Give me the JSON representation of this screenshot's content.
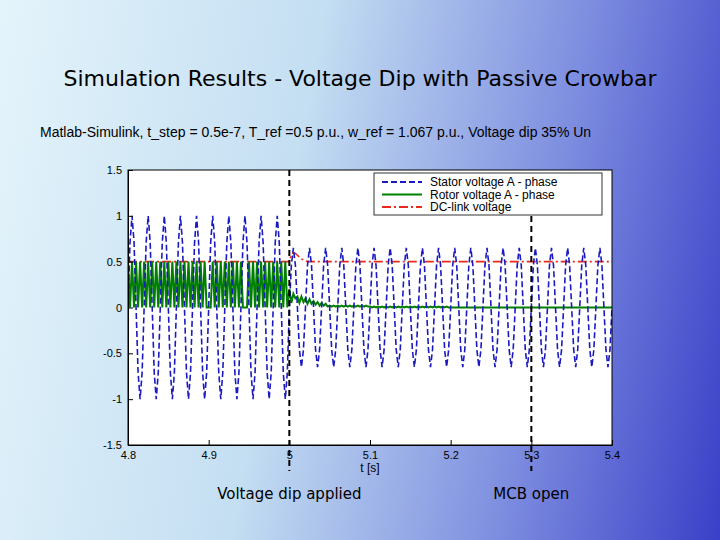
{
  "chart_data": {
    "type": "line",
    "title": "Simulation Results - Voltage Dip with Passive Crowbar",
    "subtitle": "Matlab-Simulink, t_step = 0.5e-7, T_ref =0.5 p.u., w_ref = 1.067 p.u., Voltage dip 35% Un",
    "x_label": "t [s]",
    "xlim": [
      4.8,
      5.4
    ],
    "xticks": [
      4.8,
      4.9,
      5,
      5.1,
      5.2,
      5.3,
      5.4
    ],
    "ylim": [
      -1.5,
      1.5
    ],
    "yticks": [
      -1.5,
      -1,
      -0.5,
      0,
      0.5,
      1,
      1.5
    ],
    "grid": false,
    "legend": "upper right",
    "annotations": [
      {
        "text": "Voltage dip applied",
        "x": 5
      },
      {
        "text": "MCB open",
        "x": 5.3
      }
    ],
    "x": [
      4.8,
      4.8025,
      4.805,
      4.8075,
      4.81,
      4.8125,
      4.815,
      4.8175,
      4.82,
      4.8225,
      4.825,
      4.8275,
      4.83,
      4.8325,
      4.835,
      4.8375,
      4.84,
      4.8425,
      4.845,
      4.8475,
      4.85,
      4.8525,
      4.855,
      4.8575,
      4.86,
      4.8625,
      4.865,
      4.8675,
      4.87,
      4.8725,
      4.875,
      4.8775,
      4.88,
      4.8825,
      4.885,
      4.8875,
      4.89,
      4.8925,
      4.895,
      4.8975,
      4.9,
      4.9025,
      4.905,
      4.9075,
      4.91,
      4.9125,
      4.915,
      4.9175,
      4.92,
      4.9225,
      4.925,
      4.9275,
      4.93,
      4.9325,
      4.935,
      4.9375,
      4.94,
      4.9425,
      4.945,
      4.9475,
      4.95,
      4.9525,
      4.955,
      4.9575,
      4.96,
      4.9625,
      4.965,
      4.9675,
      4.97,
      4.9725,
      4.975,
      4.9775,
      4.98,
      4.9825,
      4.985,
      4.9875,
      4.99,
      4.9925,
      4.995,
      4.9975,
      5,
      5.0025,
      5.005,
      5.0075,
      5.01,
      5.0125,
      5.015,
      5.0175,
      5.02,
      5.0225,
      5.025,
      5.0275,
      5.03,
      5.0325,
      5.035,
      5.0375,
      5.04,
      5.0425,
      5.045,
      5.0475,
      5.05,
      5.0525,
      5.055,
      5.0575,
      5.06,
      5.0625,
      5.065,
      5.0675,
      5.07,
      5.0725,
      5.075,
      5.0775,
      5.08,
      5.0825,
      5.085,
      5.0875,
      5.09,
      5.0925,
      5.095,
      5.0975,
      5.1,
      5.1025,
      5.105,
      5.1075,
      5.11,
      5.1125,
      5.115,
      5.1175,
      5.12,
      5.1225,
      5.125,
      5.1275,
      5.13,
      5.1325,
      5.135,
      5.1375,
      5.14,
      5.1425,
      5.145,
      5.1475,
      5.15,
      5.1525,
      5.155,
      5.1575,
      5.16,
      5.1625,
      5.165,
      5.1675,
      5.17,
      5.1725,
      5.175,
      5.1775,
      5.18,
      5.1825,
      5.185,
      5.1875,
      5.19,
      5.1925,
      5.195,
      5.1975,
      5.2,
      5.2025,
      5.205,
      5.2075,
      5.21,
      5.2125,
      5.215,
      5.2175,
      5.22,
      5.2225,
      5.225,
      5.2275,
      5.23,
      5.2325,
      5.235,
      5.2375,
      5.24,
      5.2425,
      5.245,
      5.2475,
      5.25,
      5.2525,
      5.255,
      5.2575,
      5.26,
      5.2625,
      5.265,
      5.2675,
      5.27,
      5.2725,
      5.275,
      5.2775,
      5.28,
      5.2825,
      5.285,
      5.2875,
      5.29,
      5.2925,
      5.295,
      5.2975,
      5.3,
      5.3025,
      5.305,
      5.3075,
      5.31,
      5.3125,
      5.315,
      5.3175,
      5.32,
      5.3225,
      5.325,
      5.3275,
      5.33,
      5.3325,
      5.335,
      5.3375,
      5.34,
      5.3425,
      5.345,
      5.3475,
      5.35,
      5.3525,
      5.355,
      5.3575,
      5.36,
      5.3625,
      5.365,
      5.3675,
      5.37,
      5.3725,
      5.375,
      5.3775,
      5.38,
      5.3825,
      5.385,
      5.3875,
      5.39,
      5.3925,
      5.395,
      5.3975,
      5.4
    ],
    "series": [
      {
        "name": "DC-link voltage",
        "color": "#e8291c",
        "line_style": "dashdot",
        "values": [
          0.5,
          0.5,
          0.5,
          0.5,
          0.5,
          0.5,
          0.5,
          0.5,
          0.5,
          0.5,
          0.5,
          0.5,
          0.5,
          0.5,
          0.5,
          0.5,
          0.5,
          0.5,
          0.5,
          0.5,
          0.5,
          0.5,
          0.5,
          0.5,
          0.5,
          0.5,
          0.5,
          0.5,
          0.5,
          0.5,
          0.5,
          0.5,
          0.5,
          0.5,
          0.5,
          0.5,
          0.5,
          0.5,
          0.5,
          0.5,
          0.5,
          0.5,
          0.5,
          0.5,
          0.5,
          0.5,
          0.5,
          0.5,
          0.5,
          0.5,
          0.5,
          0.5,
          0.5,
          0.5,
          0.5,
          0.5,
          0.5,
          0.5,
          0.5,
          0.5,
          0.5,
          0.5,
          0.5,
          0.5,
          0.5,
          0.5,
          0.5,
          0.5,
          0.5,
          0.5,
          0.5,
          0.5,
          0.5,
          0.5,
          0.5,
          0.5,
          0.5,
          0.5,
          0.5,
          0.5,
          0.5,
          0.58,
          0.6,
          0.59,
          0.57,
          0.55,
          0.53,
          0.52,
          0.51,
          0.5,
          0.5,
          0.5,
          0.5,
          0.5,
          0.5,
          0.5,
          0.5,
          0.5,
          0.5,
          0.5,
          0.5,
          0.5,
          0.5,
          0.5,
          0.5,
          0.5,
          0.5,
          0.5,
          0.5,
          0.5,
          0.5,
          0.5,
          0.5,
          0.5,
          0.5,
          0.5,
          0.5,
          0.5,
          0.5,
          0.5,
          0.5,
          0.5,
          0.5,
          0.5,
          0.5,
          0.5,
          0.5,
          0.5,
          0.5,
          0.5,
          0.5,
          0.5,
          0.5,
          0.5,
          0.5,
          0.5,
          0.5,
          0.5,
          0.5,
          0.5,
          0.5,
          0.5,
          0.5,
          0.5,
          0.5,
          0.5,
          0.5,
          0.5,
          0.5,
          0.5,
          0.5,
          0.5,
          0.5,
          0.5,
          0.5,
          0.5,
          0.5,
          0.5,
          0.5,
          0.5,
          0.5,
          0.5,
          0.5,
          0.5,
          0.5,
          0.5,
          0.5,
          0.5,
          0.5,
          0.5,
          0.5,
          0.5,
          0.5,
          0.5,
          0.5,
          0.5,
          0.5,
          0.5,
          0.5,
          0.5,
          0.5,
          0.5,
          0.5,
          0.5,
          0.5,
          0.5,
          0.5,
          0.5,
          0.5,
          0.5,
          0.5,
          0.5,
          0.5,
          0.5,
          0.5,
          0.5,
          0.5,
          0.5,
          0.5,
          0.5,
          0.5,
          0.5,
          0.5,
          0.5,
          0.5,
          0.5,
          0.5,
          0.5,
          0.5,
          0.5,
          0.5,
          0.5,
          0.5,
          0.5,
          0.5,
          0.5,
          0.5,
          0.5,
          0.5,
          0.5,
          0.5,
          0.5,
          0.5,
          0.5,
          0.5,
          0.5,
          0.5,
          0.5,
          0.5,
          0.5,
          0.5,
          0.5,
          0.5,
          0.5,
          0.5,
          0.5,
          0.5,
          0.5,
          0.5,
          0.5,
          0.5
        ]
      },
      {
        "name": "Rotor voltage A - phase",
        "color": "#008000",
        "line_style": "solid",
        "values": [
          0.5,
          0,
          0.5,
          0,
          0.5,
          0,
          0.5,
          0,
          0.5,
          0,
          0.5,
          0,
          0.5,
          0,
          0.5,
          0,
          0.5,
          0,
          0.5,
          0,
          0.5,
          0,
          0.5,
          0,
          0.5,
          0,
          0.5,
          0,
          0.5,
          0,
          0.5,
          0,
          0.5,
          0,
          0.5,
          0,
          0.5,
          0,
          0.5,
          0,
          0,
          0,
          0.5,
          0,
          0.5,
          0,
          0.5,
          0,
          0.5,
          0,
          0.5,
          0,
          0.5,
          0,
          0.5,
          0,
          0.5,
          0,
          0,
          0,
          0.5,
          0,
          0.5,
          0,
          0.5,
          0,
          0.5,
          0,
          0.5,
          0,
          0.5,
          0,
          0.5,
          0,
          0.5,
          0,
          0.5,
          0,
          0.5,
          0,
          0.2,
          0.05,
          0.15,
          0.1,
          0.12,
          0.05,
          0.12,
          0.06,
          0.1,
          0.04,
          0.09,
          0.04,
          0.07,
          0.03,
          0.06,
          0.02,
          0.05,
          0.02,
          0.04,
          0.01,
          0.02,
          0.01,
          0.02,
          0.01,
          0.02,
          0.01,
          0.02,
          0.01,
          0.02,
          0.01,
          0.02,
          0.01,
          0.02,
          0.01,
          0.02,
          0.01,
          0.02,
          0.01,
          0.02,
          0.01,
          0.01,
          0,
          0.01,
          0,
          0.01,
          0,
          0.01,
          0,
          0.01,
          0,
          0.01,
          0,
          0.01,
          0,
          0.01,
          0,
          0.01,
          0,
          0.01,
          0,
          0.01,
          0,
          0.01,
          0,
          0.01,
          0,
          0.01,
          0,
          0.01,
          0,
          0.01,
          0,
          0.01,
          0,
          0.01,
          0,
          0.01,
          0,
          0.01,
          0,
          0,
          0,
          0,
          0,
          0,
          0,
          0,
          0,
          0,
          0,
          0,
          0,
          0,
          0,
          0,
          0,
          0,
          0,
          0,
          0,
          0,
          0,
          0,
          0,
          0,
          0,
          0,
          0,
          0,
          0,
          0,
          0,
          0,
          0,
          0,
          0,
          0,
          0,
          0,
          0,
          0,
          0,
          0,
          0,
          0,
          0,
          0,
          0,
          0,
          0,
          0,
          0,
          0,
          0,
          0,
          0,
          0,
          0,
          0,
          0,
          0,
          0,
          0,
          0,
          0,
          0,
          0,
          0,
          0,
          0,
          0,
          0,
          0,
          0,
          0,
          0,
          0,
          0,
          0,
          0,
          0
        ]
      },
      {
        "name": "Stator voltage A - phase",
        "color": "#1a1ac0",
        "line_style": "dashed",
        "values": [
          0,
          0.71,
          1,
          0.71,
          0,
          -0.71,
          -1,
          -0.71,
          0,
          0.71,
          1,
          0.71,
          0,
          -0.71,
          -1,
          -0.71,
          0,
          0.71,
          1,
          0.71,
          0,
          -0.71,
          -1,
          -0.71,
          0,
          0.71,
          1,
          0.71,
          0,
          -0.71,
          -1,
          -0.71,
          0,
          0.71,
          1,
          0.71,
          0,
          -0.71,
          -1,
          -0.71,
          0,
          0.71,
          1,
          0.71,
          0,
          -0.71,
          -1,
          -0.71,
          0,
          0.71,
          1,
          0.71,
          0,
          -0.71,
          -1,
          -0.71,
          0,
          0.71,
          1,
          0.71,
          0,
          -0.71,
          -1,
          -0.71,
          0,
          0.71,
          1,
          0.71,
          0,
          -0.71,
          -1,
          -0.71,
          0,
          0.71,
          1,
          0.71,
          0,
          -0.71,
          -1,
          -0.71,
          0,
          0.46,
          0.65,
          0.46,
          0,
          -0.46,
          -0.65,
          -0.46,
          0,
          0.46,
          0.65,
          0.46,
          0,
          -0.46,
          -0.65,
          -0.46,
          0,
          0.46,
          0.65,
          0.46,
          0,
          -0.46,
          -0.65,
          -0.46,
          0,
          0.46,
          0.65,
          0.46,
          0,
          -0.46,
          -0.65,
          -0.46,
          0,
          0.46,
          0.65,
          0.46,
          0,
          -0.46,
          -0.65,
          -0.46,
          0,
          0.46,
          0.65,
          0.46,
          0,
          -0.46,
          -0.65,
          -0.46,
          0,
          0.46,
          0.65,
          0.46,
          0,
          -0.46,
          -0.65,
          -0.46,
          0,
          0.46,
          0.65,
          0.46,
          0,
          -0.46,
          -0.65,
          -0.46,
          0,
          0.46,
          0.65,
          0.46,
          0,
          -0.46,
          -0.65,
          -0.46,
          0,
          0.46,
          0.65,
          0.46,
          0,
          -0.46,
          -0.65,
          -0.46,
          0,
          0.46,
          0.65,
          0.46,
          0,
          -0.46,
          -0.65,
          -0.46,
          0,
          0.46,
          0.65,
          0.46,
          0,
          -0.46,
          -0.65,
          -0.46,
          0,
          0.46,
          0.65,
          0.46,
          0,
          -0.46,
          -0.65,
          -0.46,
          0,
          0.46,
          0.65,
          0.46,
          0,
          -0.46,
          -0.65,
          -0.46,
          0,
          0.46,
          0.65,
          0.46,
          0,
          -0.46,
          -0.65,
          -0.46,
          0,
          0.46,
          0.65,
          0.46,
          0,
          -0.46,
          -0.65,
          -0.46,
          0,
          0.46,
          0.65,
          0.46,
          0,
          -0.46,
          -0.65,
          -0.46,
          0,
          0.46,
          0.65,
          0.46,
          0,
          -0.46,
          -0.65,
          -0.46,
          0,
          0.46,
          0.65,
          0.46,
          0,
          -0.46,
          -0.65,
          -0.46,
          0,
          0.46,
          0.65,
          0.46,
          0,
          -0.46,
          -0.65,
          -0.46,
          0
        ]
      }
    ]
  }
}
